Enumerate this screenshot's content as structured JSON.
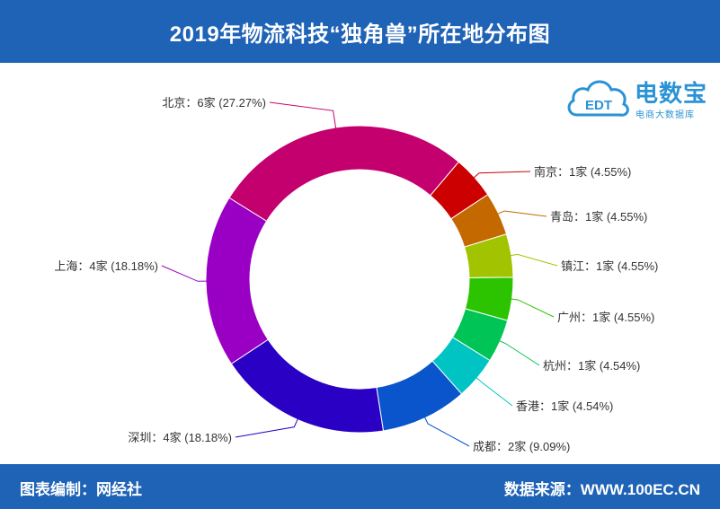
{
  "header": {
    "title": "2019年物流科技“独角兽”所在地分布图"
  },
  "footer": {
    "left": "图表编制：网经社",
    "right": "数据来源：WWW.100EC.CN"
  },
  "logo": {
    "text": "电数宝",
    "subtext": "电商大数据库",
    "badge": "EDT",
    "color": "#2a93d5"
  },
  "chart_data": {
    "type": "pie",
    "variant": "donut",
    "slices": [
      {
        "label": "北京：6家 (27.27%)",
        "name": "北京",
        "value": 6,
        "percent": 27.27,
        "color": "#c4006e"
      },
      {
        "label": "南京：1家 (4.55%)",
        "name": "南京",
        "value": 1,
        "percent": 4.55,
        "color": "#cc0000"
      },
      {
        "label": "青岛：1家 (4.55%)",
        "name": "青岛",
        "value": 1,
        "percent": 4.55,
        "color": "#c46800"
      },
      {
        "label": "镇江：1家 (4.55%)",
        "name": "镇江",
        "value": 1,
        "percent": 4.55,
        "color": "#a2c400"
      },
      {
        "label": "广州：1家 (4.55%)",
        "name": "广州",
        "value": 1,
        "percent": 4.55,
        "color": "#2cc400"
      },
      {
        "label": "杭州：1家 (4.54%)",
        "name": "杭州",
        "value": 1,
        "percent": 4.54,
        "color": "#00c455"
      },
      {
        "label": "香港：1家 (4.54%)",
        "name": "香港",
        "value": 1,
        "percent": 4.54,
        "color": "#00c4c4"
      },
      {
        "label": "成都：2家 (9.09%)",
        "name": "成都",
        "value": 2,
        "percent": 9.09,
        "color": "#0a55cc"
      },
      {
        "label": "深圳：4家 (18.18%)",
        "name": "深圳",
        "value": 4,
        "percent": 18.18,
        "color": "#2a00c4"
      },
      {
        "label": "上海：4家 (18.18%)",
        "name": "上海",
        "value": 4,
        "percent": 18.18,
        "color": "#9a00c4"
      }
    ]
  }
}
